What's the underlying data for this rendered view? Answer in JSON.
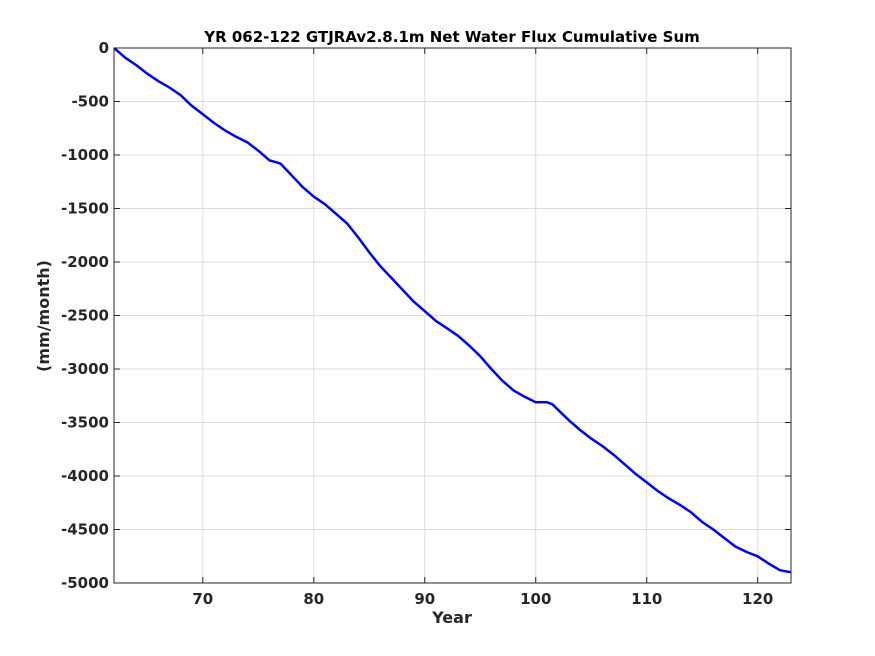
{
  "chart_data": {
    "type": "line",
    "title": "YR 062-122 GTJRAv2.8.1m Net Water Flux Cumulative Sum",
    "xlabel": "Year",
    "ylabel": "(mm/month)",
    "xlim": [
      62,
      123
    ],
    "ylim": [
      -5000,
      0
    ],
    "xticks": [
      70,
      80,
      90,
      100,
      110,
      120
    ],
    "yticks": [
      0,
      -500,
      -1000,
      -1500,
      -2000,
      -2500,
      -3000,
      -3500,
      -4000,
      -4500,
      -5000
    ],
    "grid": true,
    "series": [
      {
        "color": "#0000ff",
        "x": [
          62,
          63,
          64,
          65,
          66,
          67,
          68,
          69,
          70,
          71,
          72,
          73,
          74,
          75,
          76,
          77,
          78,
          79,
          80,
          81,
          82,
          83,
          84,
          85,
          86,
          87,
          88,
          89,
          90,
          91,
          92,
          93,
          94,
          95,
          96,
          97,
          98,
          99,
          100,
          101,
          101.5,
          102,
          103,
          104,
          105,
          106,
          107,
          108,
          109,
          110,
          111,
          112,
          113,
          114,
          115,
          116,
          117,
          118,
          119,
          120,
          121,
          122,
          123
        ],
        "y": [
          0,
          -90,
          -160,
          -240,
          -310,
          -370,
          -440,
          -540,
          -620,
          -700,
          -770,
          -830,
          -880,
          -960,
          -1050,
          -1080,
          -1190,
          -1300,
          -1390,
          -1460,
          -1550,
          -1640,
          -1770,
          -1910,
          -2040,
          -2150,
          -2260,
          -2370,
          -2460,
          -2550,
          -2620,
          -2690,
          -2780,
          -2880,
          -3000,
          -3110,
          -3200,
          -3260,
          -3310,
          -3310,
          -3330,
          -3380,
          -3480,
          -3570,
          -3650,
          -3720,
          -3800,
          -3890,
          -3980,
          -4060,
          -4140,
          -4210,
          -4270,
          -4340,
          -4430,
          -4500,
          -4580,
          -4660,
          -4710,
          -4750,
          -4820,
          -4880,
          -4900
        ]
      }
    ]
  }
}
